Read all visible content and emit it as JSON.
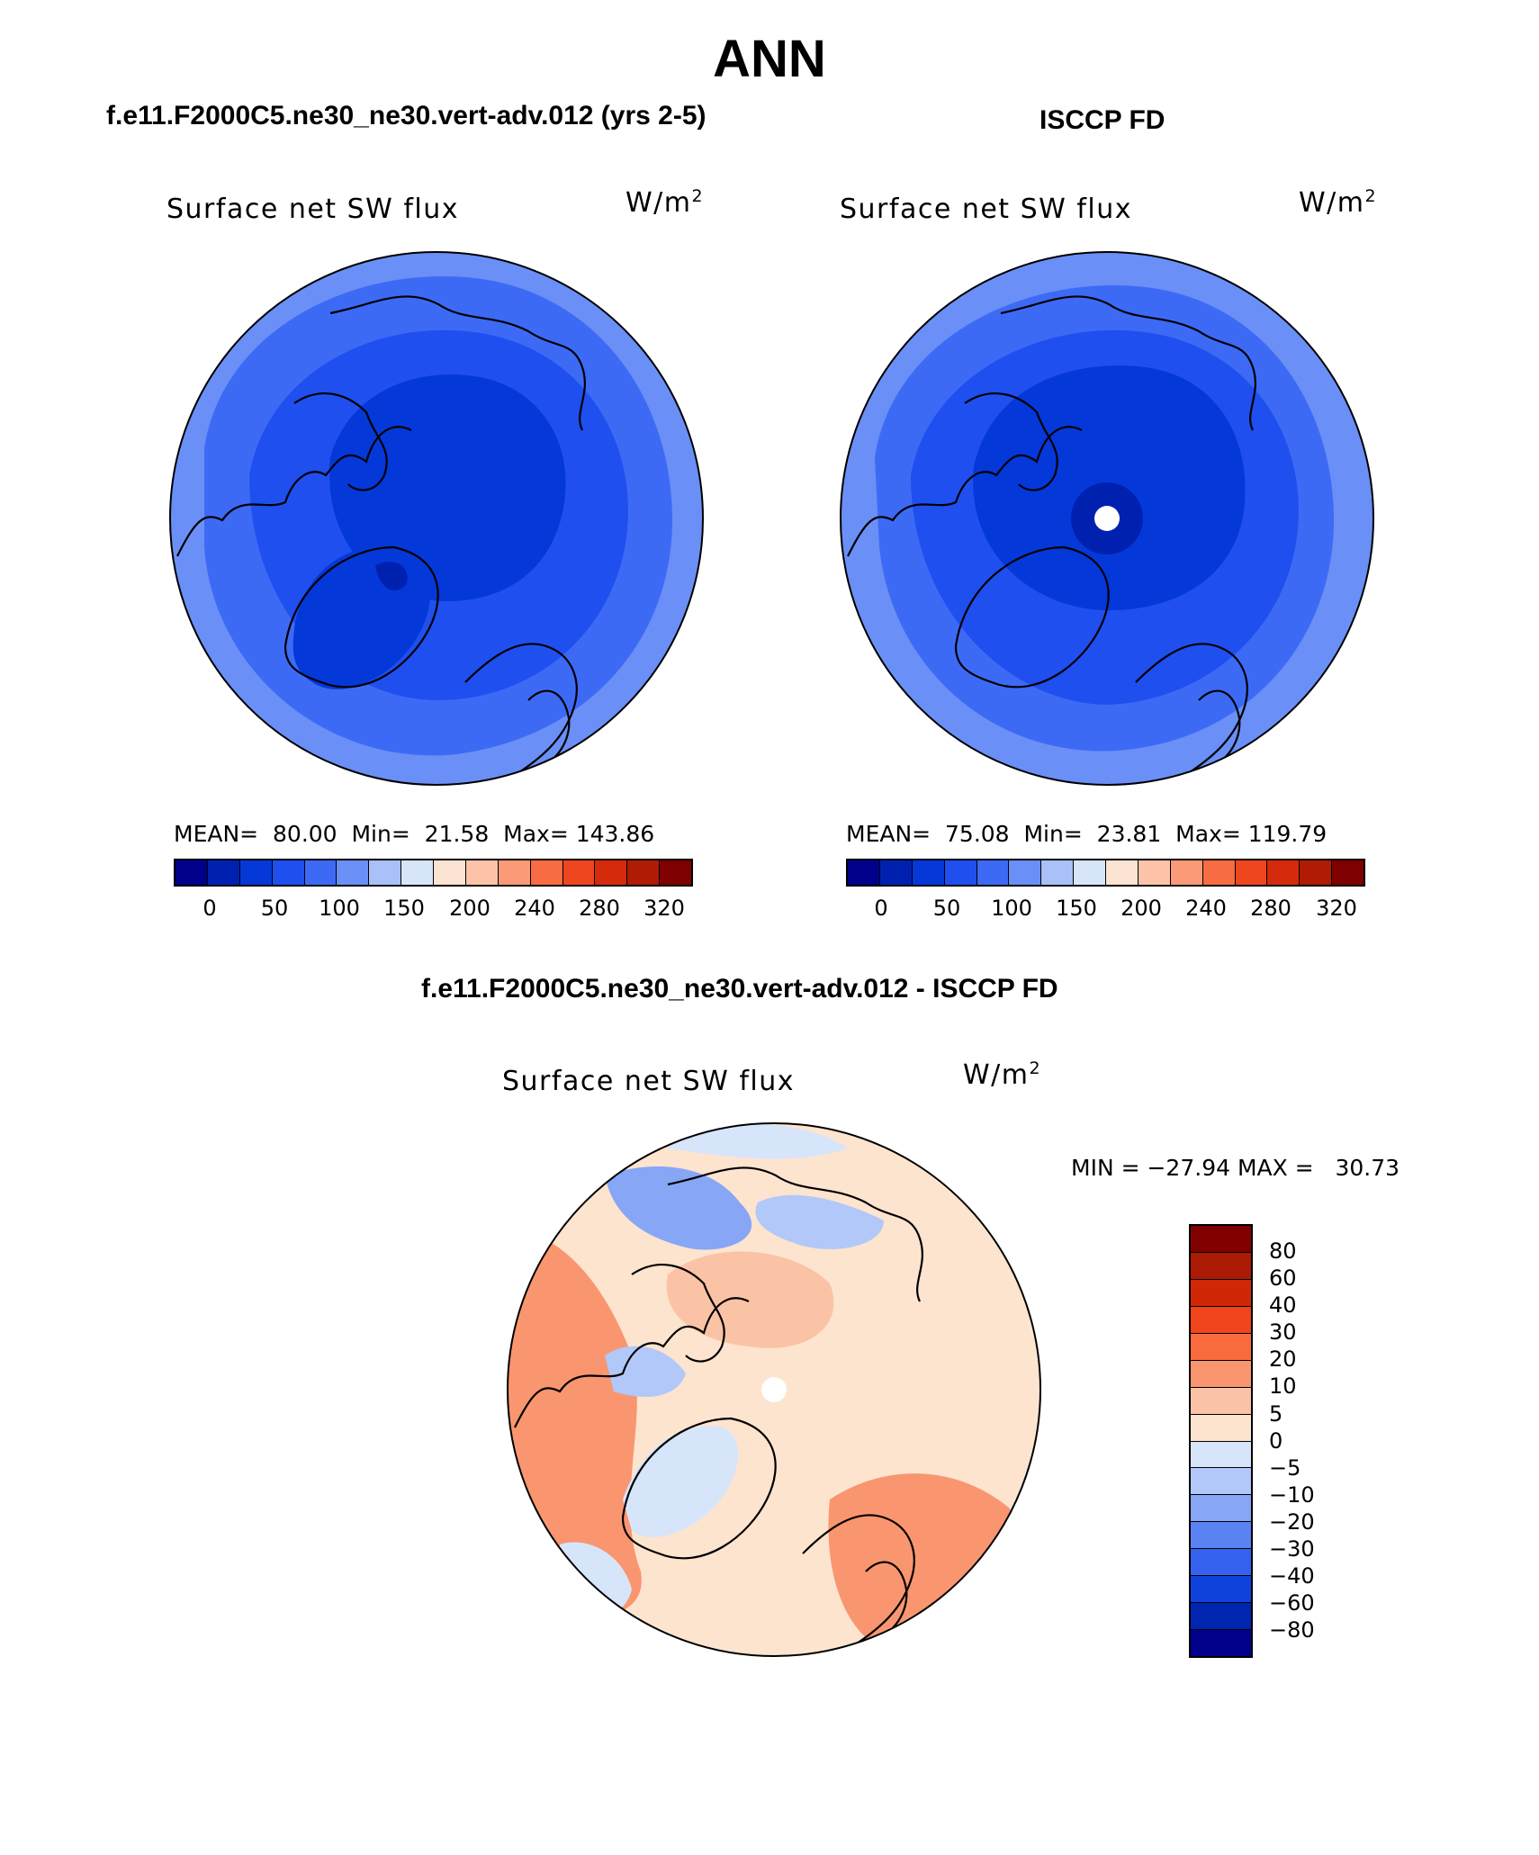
{
  "title": "ANN",
  "panels": [
    {
      "heading": "f.e11.F2000C5.ne30_ne30.vert-adv.012 (yrs 2-5)",
      "variable": "Surface net SW flux",
      "units_base": "W/m",
      "units_exp": "2",
      "stats": "MEAN=  80.00  Min=  21.58  Max= 143.86",
      "colorbar_ticks": [
        "0",
        "50",
        "100",
        "150",
        "200",
        "240",
        "280",
        "320"
      ]
    },
    {
      "heading": "ISCCP FD",
      "variable": "Surface net SW flux",
      "units_base": "W/m",
      "units_exp": "2",
      "stats": "MEAN=  75.08  Min=  23.81  Max= 119.79",
      "colorbar_ticks": [
        "0",
        "50",
        "100",
        "150",
        "200",
        "240",
        "280",
        "320"
      ]
    },
    {
      "heading": "f.e11.F2000C5.ne30_ne30.vert-adv.012 - ISCCP FD",
      "variable": "Surface net SW flux",
      "units_base": "W/m",
      "units_exp": "2",
      "stats": "MIN = −27.94 MAX =   30.73",
      "colorbar_ticks": [
        "80",
        "60",
        "40",
        "30",
        "20",
        "10",
        "5",
        "0",
        "−5",
        "−10",
        "−20",
        "−30",
        "−40",
        "−60",
        "−80"
      ]
    }
  ],
  "colors": {
    "abs_scale": [
      "#00008b",
      "#0021b0",
      "#0538d9",
      "#1f4fef",
      "#3d6af5",
      "#6a8ff6",
      "#a9c0f8",
      "#d7e5fb",
      "#fde3d1",
      "#fcc3a8",
      "#fa9a76",
      "#f86c44",
      "#f04620",
      "#d62a0c",
      "#b01b06",
      "#7f0000"
    ],
    "diff_scale": [
      "#800000",
      "#aa1a05",
      "#cf2806",
      "#f0441a",
      "#f96b3c",
      "#f99670",
      "#fbc3a5",
      "#fde4cf",
      "#d7e5fb",
      "#b2c8f8",
      "#87a6f6",
      "#5b82f3",
      "#3462ee",
      "#0f42dc",
      "#0025b0",
      "#00008b"
    ],
    "land_outline": "#000000"
  }
}
